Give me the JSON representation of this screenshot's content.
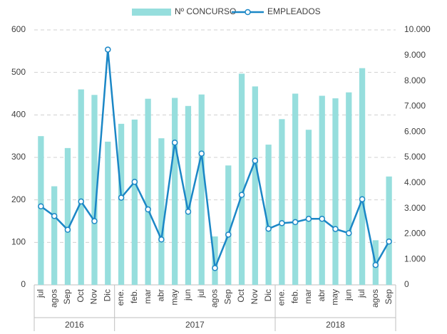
{
  "chart_data": {
    "type": "bar-line",
    "groups": [
      {
        "label": "2016",
        "categories": [
          "jul",
          "agos",
          "Sep",
          "Oct",
          "Nov",
          "Dic"
        ]
      },
      {
        "label": "2017",
        "categories": [
          "ene.",
          "feb.",
          "mar",
          "abr",
          "may",
          "jun",
          "jul",
          "agos",
          "Sep",
          "Oct",
          "Nov",
          "Dic"
        ]
      },
      {
        "label": "2018",
        "categories": [
          "ene.",
          "feb.",
          "mar",
          "abr",
          "may",
          "jun",
          "jul",
          "agos",
          "Sep"
        ]
      }
    ],
    "series": [
      {
        "name": "Nº CONCURSO",
        "type": "bar",
        "color": "#96dedd",
        "values": [
          350,
          232,
          322,
          460,
          447,
          337,
          379,
          389,
          438,
          345,
          440,
          421,
          448,
          114,
          281,
          497,
          467,
          330,
          390,
          450,
          365,
          445,
          439,
          453,
          510,
          105,
          255
        ]
      },
      {
        "name": "EMPLEADOS",
        "type": "line",
        "axis": "y2",
        "color": "#1b87c6",
        "values": [
          3080,
          2700,
          2160,
          3270,
          2500,
          9230,
          3420,
          4040,
          2960,
          1780,
          5580,
          2870,
          5150,
          660,
          1970,
          3530,
          4870,
          2200,
          2420,
          2460,
          2590,
          2590,
          2190,
          2030,
          3360,
          780,
          1700
        ]
      }
    ],
    "ylim": [
      0,
      600
    ],
    "yticks": [
      0,
      100,
      200,
      300,
      400,
      500,
      600
    ],
    "y2lim": [
      0,
      10000
    ],
    "y2ticks": [
      0,
      {
        "value": 1000,
        "label": "1.000"
      },
      {
        "value": 2000,
        "label": "2.000"
      },
      {
        "value": 3000,
        "label": "3.000"
      },
      {
        "value": 4000,
        "label": "4.000"
      },
      {
        "value": 5000,
        "label": "5.000"
      },
      {
        "value": 6000,
        "label": "6.000"
      },
      {
        "value": 7000,
        "label": "7.000"
      },
      {
        "value": 8000,
        "label": "8.000"
      },
      {
        "value": 9000,
        "label": "9.000"
      },
      {
        "value": 10000,
        "label": "10.000"
      }
    ],
    "grid": true,
    "legend": "top"
  }
}
